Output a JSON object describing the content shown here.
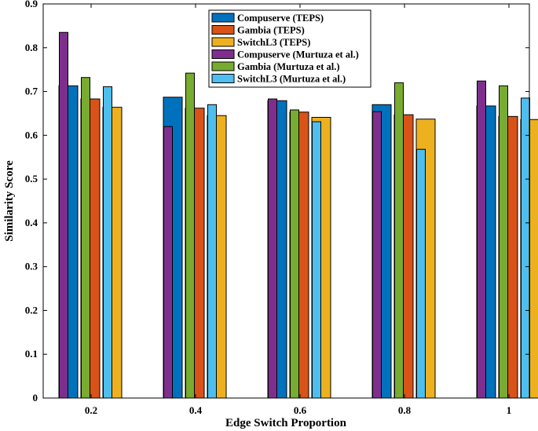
{
  "chart_data": {
    "type": "bar",
    "title": "",
    "xlabel": "Edge Switch Proportion",
    "ylabel": "Similarity Score",
    "ylim": [
      0,
      0.9
    ],
    "yticks": [
      "0",
      "0.1",
      "0.2",
      "0.3",
      "0.4",
      "0.5",
      "0.6",
      "0.7",
      "0.8",
      "0.9"
    ],
    "categories": [
      "0.2",
      "0.4",
      "0.6",
      "0.8",
      "1"
    ],
    "legend_position": "top-center",
    "series": [
      {
        "name": "Compuserve (TEPS)",
        "color": "#0072BD",
        "values": [
          0.713,
          0.687,
          0.679,
          0.67,
          0.667
        ]
      },
      {
        "name": "Compuserve (Murtuza et al.)",
        "color": "#7E2F8E",
        "values": [
          0.835,
          0.62,
          0.683,
          0.654,
          0.724
        ]
      },
      {
        "name": "Gambia (TEPS)",
        "color": "#D95319",
        "values": [
          0.683,
          0.662,
          0.653,
          0.647,
          0.643
        ]
      },
      {
        "name": "Gambia (Murtuza et al.)",
        "color": "#77AC30",
        "values": [
          0.732,
          0.742,
          0.658,
          0.72,
          0.713
        ]
      },
      {
        "name": "SwitchL3 (TEPS)",
        "color": "#EDB120",
        "values": [
          0.664,
          0.645,
          0.641,
          0.637,
          0.636
        ]
      },
      {
        "name": "SwitchL3 (Murtuza et al.)",
        "color": "#4DBEEE",
        "values": [
          0.711,
          0.67,
          0.631,
          0.568,
          0.685
        ]
      }
    ],
    "legend_order": [
      0,
      2,
      4,
      1,
      3,
      5
    ]
  }
}
